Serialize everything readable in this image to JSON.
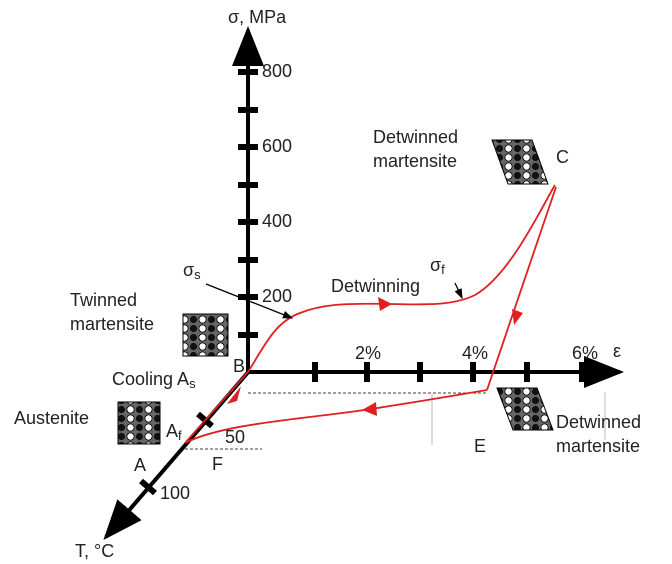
{
  "axes": {
    "sigma": "σ, MPa",
    "epsilon": "ε",
    "temperature": "T, °C",
    "sigma_ticks": [
      "800",
      "600",
      "400",
      "200"
    ],
    "epsilon_ticks": [
      "2%",
      "4%",
      "6%"
    ],
    "temperature_ticks": [
      "50",
      "100"
    ]
  },
  "points": {
    "B": "B",
    "C": "C",
    "E": "E",
    "F": "F",
    "A": "A",
    "Af": {
      "base": "A",
      "sub": "f"
    },
    "cooling": {
      "base": "Cooling A",
      "sub": "s"
    }
  },
  "stresses": {
    "sigma_s": {
      "base": "σ",
      "sub": "s"
    },
    "sigma_f": {
      "base": "σ",
      "sub": "f"
    }
  },
  "labels": {
    "detwinning": "Detwinning",
    "austenite": "Austenite",
    "twinned": [
      "Twinned",
      "martensite"
    ],
    "detwinned_top": [
      "Detwinned",
      "martensite"
    ],
    "detwinned_bottom": [
      "Detwinned",
      "martensite"
    ]
  }
}
